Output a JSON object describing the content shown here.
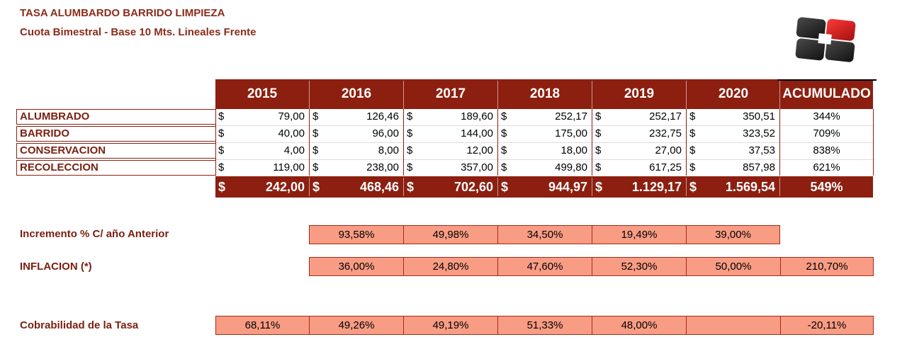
{
  "title": "TASA ALUMBARDO BARRIDO LIMPIEZA",
  "subtitle": "Cuota Bimestral - Base 10 Mts. Lineales Frente",
  "header": {
    "years": [
      "2015",
      "2016",
      "2017",
      "2018",
      "2019",
      "2020"
    ],
    "accumulated": "ACUMULADO"
  },
  "currency": "$",
  "rows": [
    {
      "label": "ALUMBRADO",
      "values": [
        "79,00",
        "126,46",
        "189,60",
        "252,17",
        "252,17",
        "350,51"
      ],
      "acc": "344%"
    },
    {
      "label": "BARRIDO",
      "values": [
        "40,00",
        "96,00",
        "144,00",
        "175,00",
        "232,75",
        "323,52"
      ],
      "acc": "709%"
    },
    {
      "label": "CONSERVACION",
      "values": [
        "4,00",
        "8,00",
        "12,00",
        "18,00",
        "27,00",
        "37,53"
      ],
      "acc": "838%"
    },
    {
      "label": "RECOLECCION",
      "values": [
        "119,00",
        "238,00",
        "357,00",
        "499,80",
        "617,25",
        "857,98"
      ],
      "acc": "621%"
    }
  ],
  "totals": {
    "values": [
      "242,00",
      "468,46",
      "702,60",
      "944,97",
      "1.129,17",
      "1.569,54"
    ],
    "acc": "549%"
  },
  "increment": {
    "label": "Incremento % C/ año Anterior",
    "values": [
      "93,58%",
      "49,98%",
      "34,50%",
      "19,49%",
      "39,00%"
    ]
  },
  "inflation": {
    "label": "INFLACION (*)",
    "values": [
      "36,00%",
      "24,80%",
      "47,60%",
      "52,30%",
      "50,00%"
    ],
    "acc": "210,70%"
  },
  "collectability": {
    "label": "Cobrabilidad de la Tasa",
    "values": [
      "68,11%",
      "49,26%",
      "49,19%",
      "51,33%",
      "48,00%",
      ""
    ],
    "acc": "-20,11%"
  },
  "colors": {
    "header_bg": "#8c1f10",
    "label_text": "#7a1f10",
    "pct_fill": "#f99c84",
    "logo_red": "#d41f1f",
    "logo_dark": "#2a2a2a"
  },
  "logo_icon": "plus-square-logo-icon"
}
